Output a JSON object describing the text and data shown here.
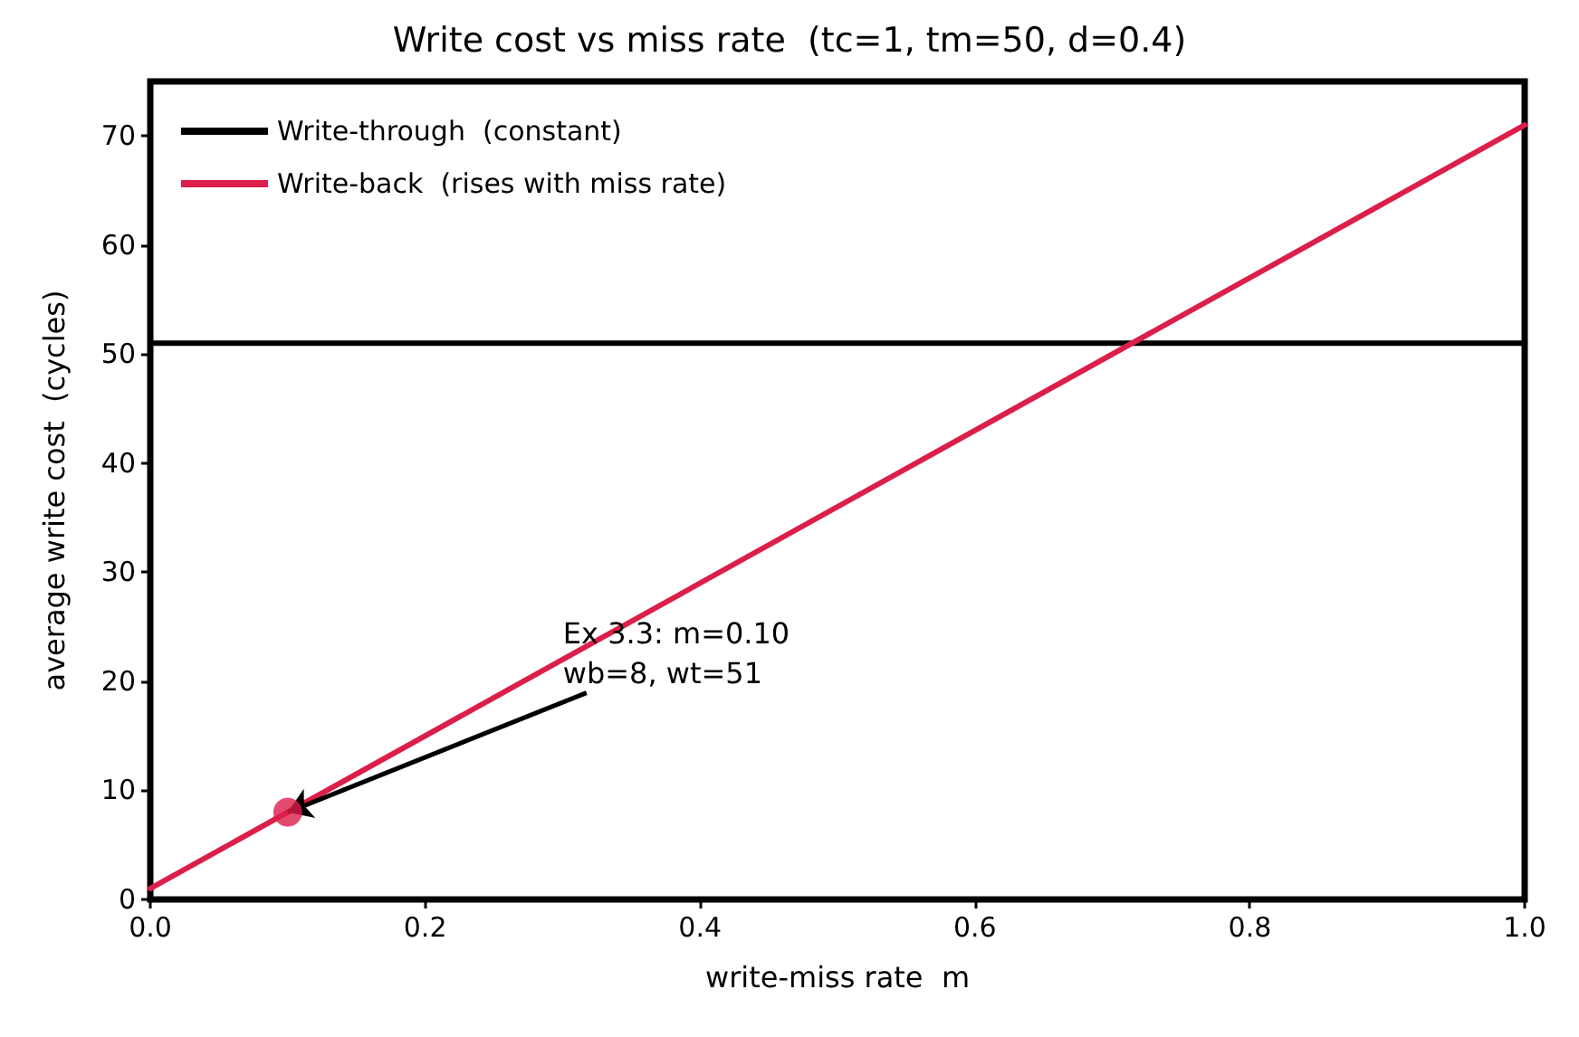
{
  "chart_data": {
    "type": "line",
    "title": "Write cost vs miss rate  (tc=1, tm=50, d=0.4)",
    "xlabel": "write-miss rate  m",
    "ylabel": "average write cost  (cycles)",
    "x": [
      0,
      1
    ],
    "series": [
      {
        "name": "Write-through  (constant)",
        "color": "#000000",
        "values": [
          51,
          51
        ]
      },
      {
        "name": "Write-back  (rises with miss rate)",
        "color": "#dc1e4a",
        "values": [
          1,
          71
        ]
      },
      {
        "type": "scatter",
        "color": "#dc1e4a",
        "marker": "circle",
        "x": [
          0.1
        ],
        "values": [
          8
        ]
      }
    ],
    "annotations": [
      {
        "text": "Ex 3.3: m=0.10\nwb=8, wt=51",
        "x": 0.1,
        "y": 8
      }
    ],
    "xlim": [
      0,
      1
    ],
    "ylim": [
      0,
      75
    ],
    "xticks": [
      {
        "value": 0,
        "label": "0.0"
      },
      0.2,
      0.4,
      0.6,
      0.8,
      {
        "value": 1,
        "label": "1.0"
      }
    ],
    "yticks": [
      0,
      10,
      20,
      30,
      40,
      50,
      60,
      70
    ],
    "grid": false,
    "legend": "top left",
    "marker": "none",
    "line_style": "solid"
  }
}
